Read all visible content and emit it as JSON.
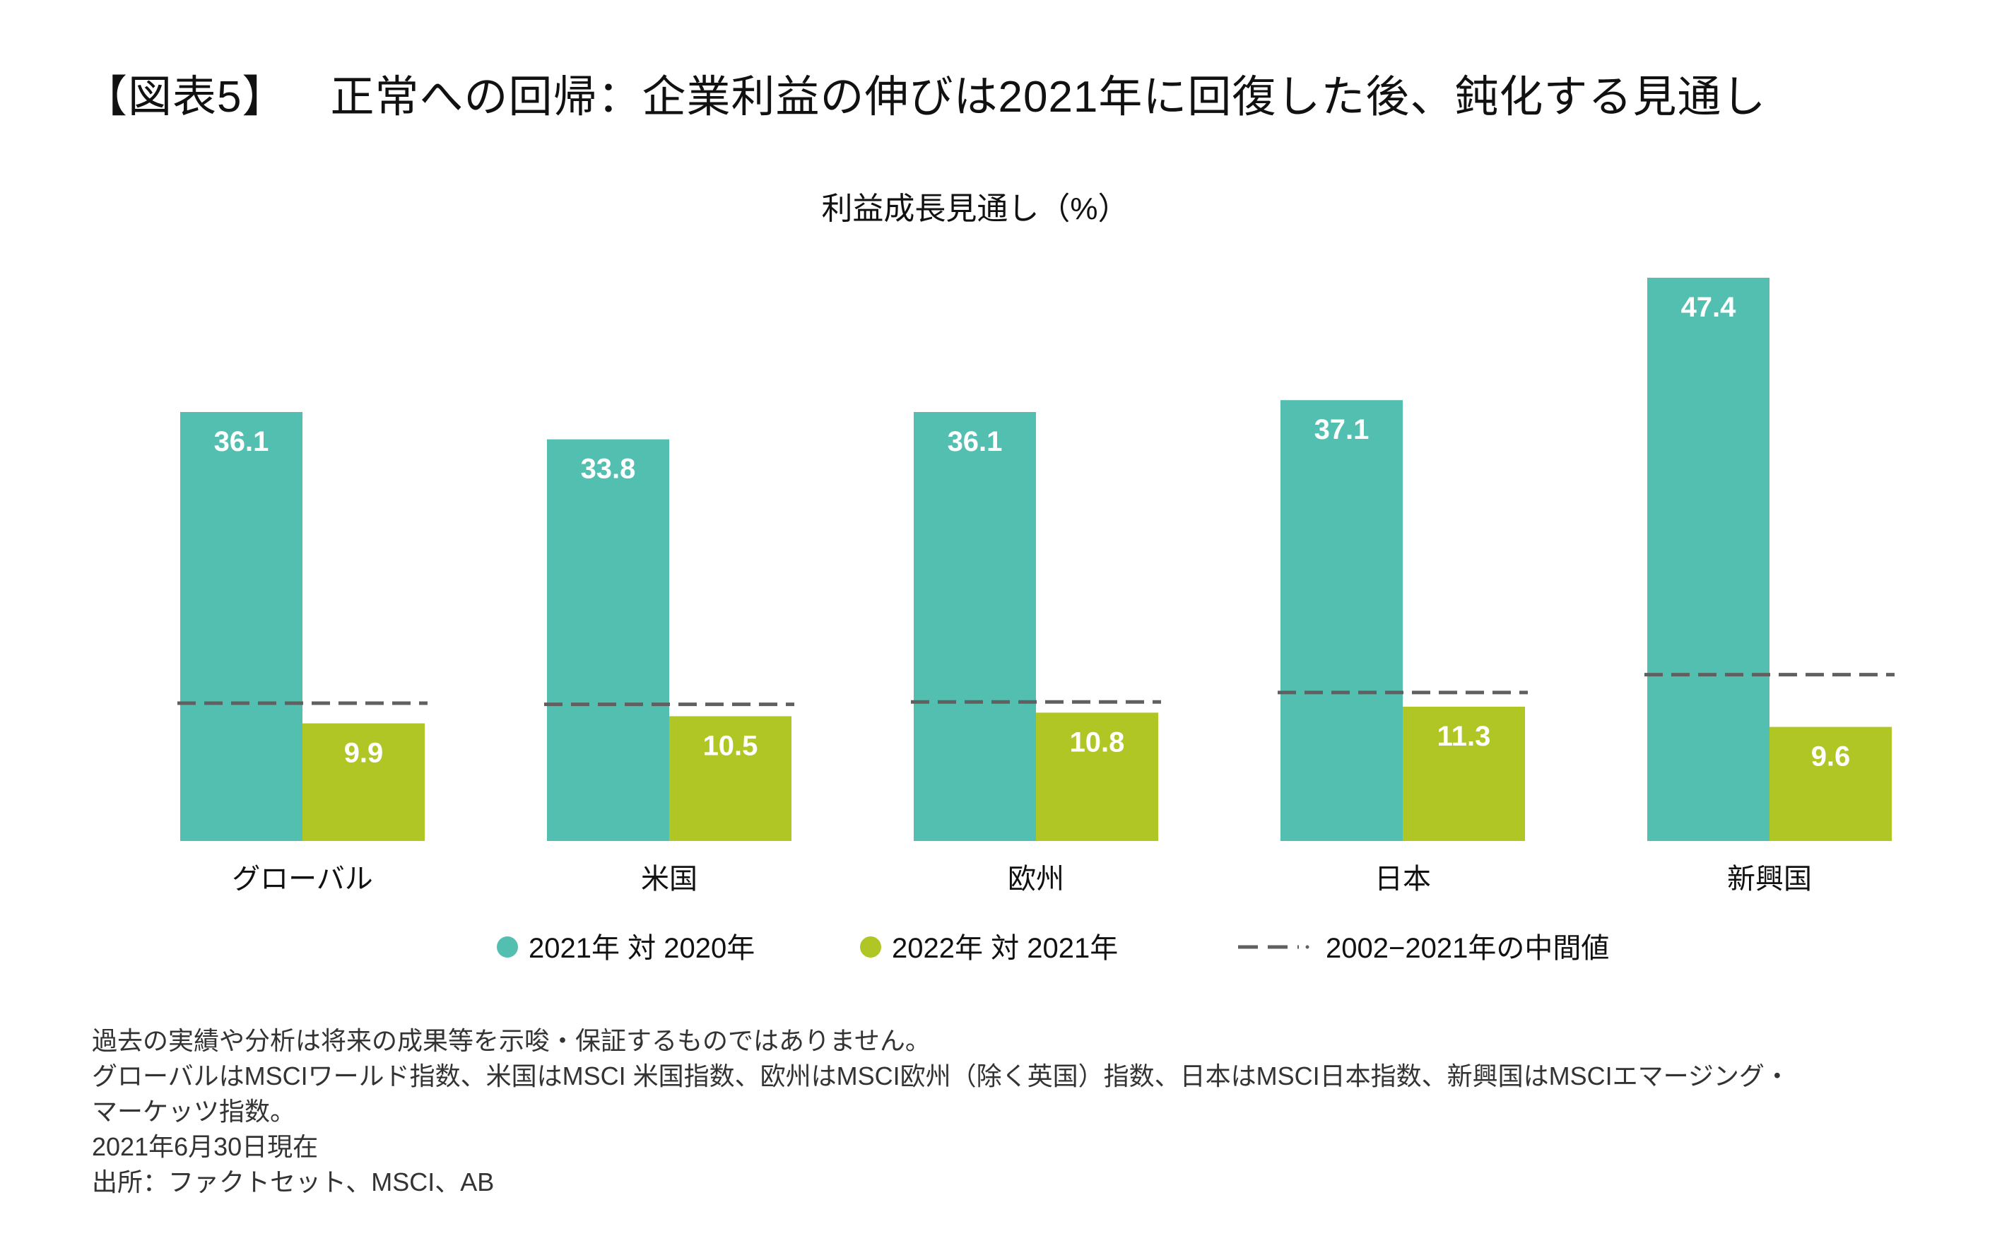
{
  "title": {
    "label": "【図表5】",
    "text": "正常への回帰：企業利益の伸びは2021年に回復した後、鈍化する見通し"
  },
  "chart_data": {
    "type": "bar",
    "title": "利益成長見通し（%）",
    "categories": [
      "グローバル",
      "米国",
      "欧州",
      "日本",
      "新興国"
    ],
    "series": [
      {
        "name": "2021年 対 2020年",
        "values": [
          36.1,
          33.8,
          36.1,
          37.1,
          47.4
        ],
        "color": "#52bfb0",
        "label_text": [
          "36.1",
          "33.8",
          "36.1",
          "37.1",
          "47.4"
        ]
      },
      {
        "name": "2022年 対 2021年",
        "values": [
          9.9,
          10.5,
          10.8,
          11.3,
          9.6
        ],
        "color": "#b0c625",
        "label_text": [
          "9.9",
          "10.5",
          "10.8",
          "11.3",
          "9.6"
        ]
      }
    ],
    "reference": {
      "name": "2002−2021年の中間値",
      "values": [
        11.6,
        11.5,
        11.7,
        12.5,
        14.0
      ],
      "color": "#606060",
      "style": "dashed"
    },
    "ylim": [
      0,
      47.4
    ],
    "xlabel": "",
    "ylabel": "",
    "grid": false,
    "legend_position": "bottom-center",
    "data_label_color": "#ffffff"
  },
  "footnotes": [
    "過去の実績や分析は将来の成果等を示唆・保証するものではありません。",
    "グローバルはMSCIワールド指数、米国はMSCI 米国指数、欧州はMSCI欧州（除く英国）指数、日本はMSCI日本指数、新興国はMSCIエマージング・",
    "マーケッツ指数。",
    "2021年6月30日現在",
    "出所：ファクトセット、MSCI、AB"
  ]
}
